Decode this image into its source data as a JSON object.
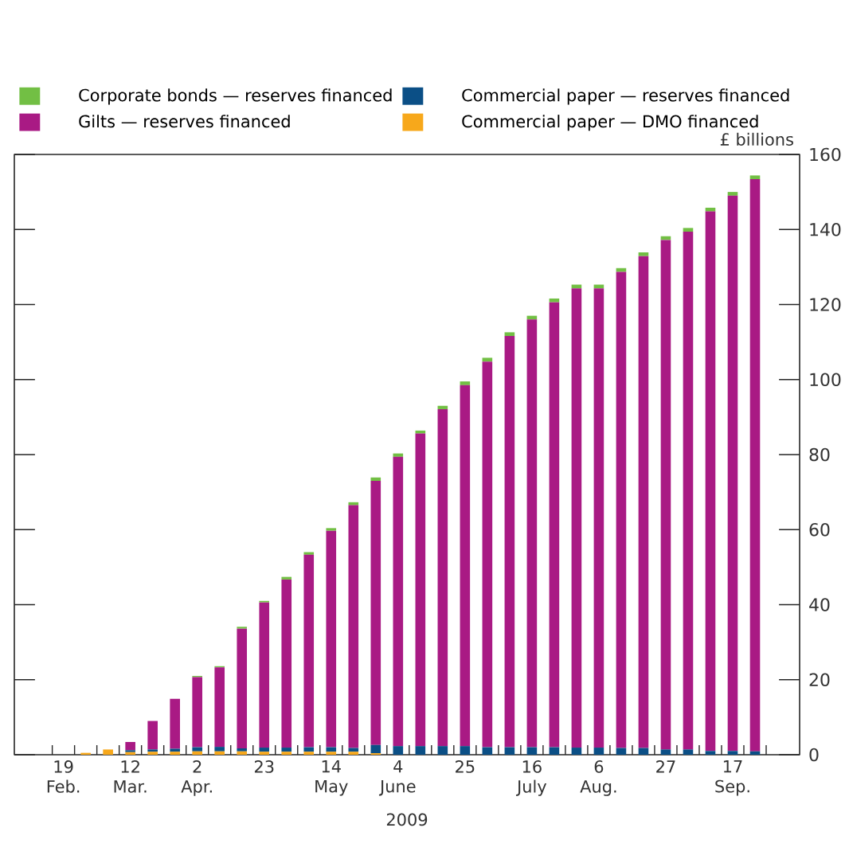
{
  "chart_data": {
    "type": "bar",
    "stacked": true,
    "xlabel": "2009",
    "ylabel": "£ billions",
    "categories": [
      "19 Feb.",
      null,
      null,
      "12 Mar.",
      null,
      null,
      "2 Apr.",
      null,
      null,
      "23",
      null,
      null,
      "14 May",
      null,
      null,
      "4 June",
      null,
      null,
      "25",
      null,
      null,
      "16 July",
      null,
      null,
      "6 Aug.",
      null,
      null,
      "27",
      null,
      null,
      "17 Sep.",
      null
    ],
    "series": [
      {
        "name": "Commercial paper — DMO financed",
        "color": "#f7a81b",
        "values": [
          0,
          0.5,
          1.4,
          0.7,
          0.8,
          0.8,
          0.9,
          0.9,
          0.9,
          0.8,
          0.8,
          0.8,
          0.8,
          0.8,
          0.4,
          0,
          0,
          0,
          0,
          0,
          0,
          0,
          0,
          0,
          0,
          0,
          0,
          0,
          0,
          0,
          0,
          0
        ]
      },
      {
        "name": "Commercial paper — reserves financed",
        "color": "#0b4f86",
        "values": [
          0,
          0,
          0,
          0.5,
          0.6,
          0.8,
          1.1,
          1.2,
          0.8,
          1.1,
          1.1,
          1.2,
          1.2,
          1.0,
          2.2,
          2.3,
          2.3,
          2.3,
          2.3,
          2.0,
          2.0,
          2.0,
          2.0,
          1.9,
          1.9,
          1.8,
          1.8,
          1.4,
          1.4,
          1.0,
          1.0,
          0.9
        ]
      },
      {
        "name": "Gilts — reserves financed",
        "color": "#a91a84",
        "values": [
          0,
          0,
          0,
          2.2,
          7.6,
          13.3,
          18.7,
          21.2,
          31.9,
          38.7,
          44.8,
          51.3,
          57.7,
          64.7,
          70.4,
          77.1,
          83.3,
          89.8,
          96.2,
          102.8,
          109.6,
          114.0,
          118.6,
          122.4,
          122.4,
          126.9,
          131.1,
          135.8,
          138.0,
          143.8,
          148.0,
          152.5
        ]
      },
      {
        "name": "Corporate bonds — reserves financed",
        "color": "#72bf44",
        "values": [
          0,
          0,
          0,
          0,
          0,
          0,
          0.3,
          0.3,
          0.5,
          0.4,
          0.7,
          0.7,
          0.7,
          0.8,
          0.9,
          0.9,
          0.8,
          0.9,
          1.0,
          1.0,
          1.0,
          1.0,
          1.0,
          1.0,
          1.0,
          1.0,
          1.0,
          1.0,
          1.0,
          1.0,
          1.0,
          1.0
        ]
      }
    ],
    "ylim": [
      0,
      160
    ],
    "yticks": [
      0,
      20,
      40,
      60,
      80,
      100,
      120,
      140,
      160
    ],
    "grid": false,
    "legend": "top left"
  }
}
